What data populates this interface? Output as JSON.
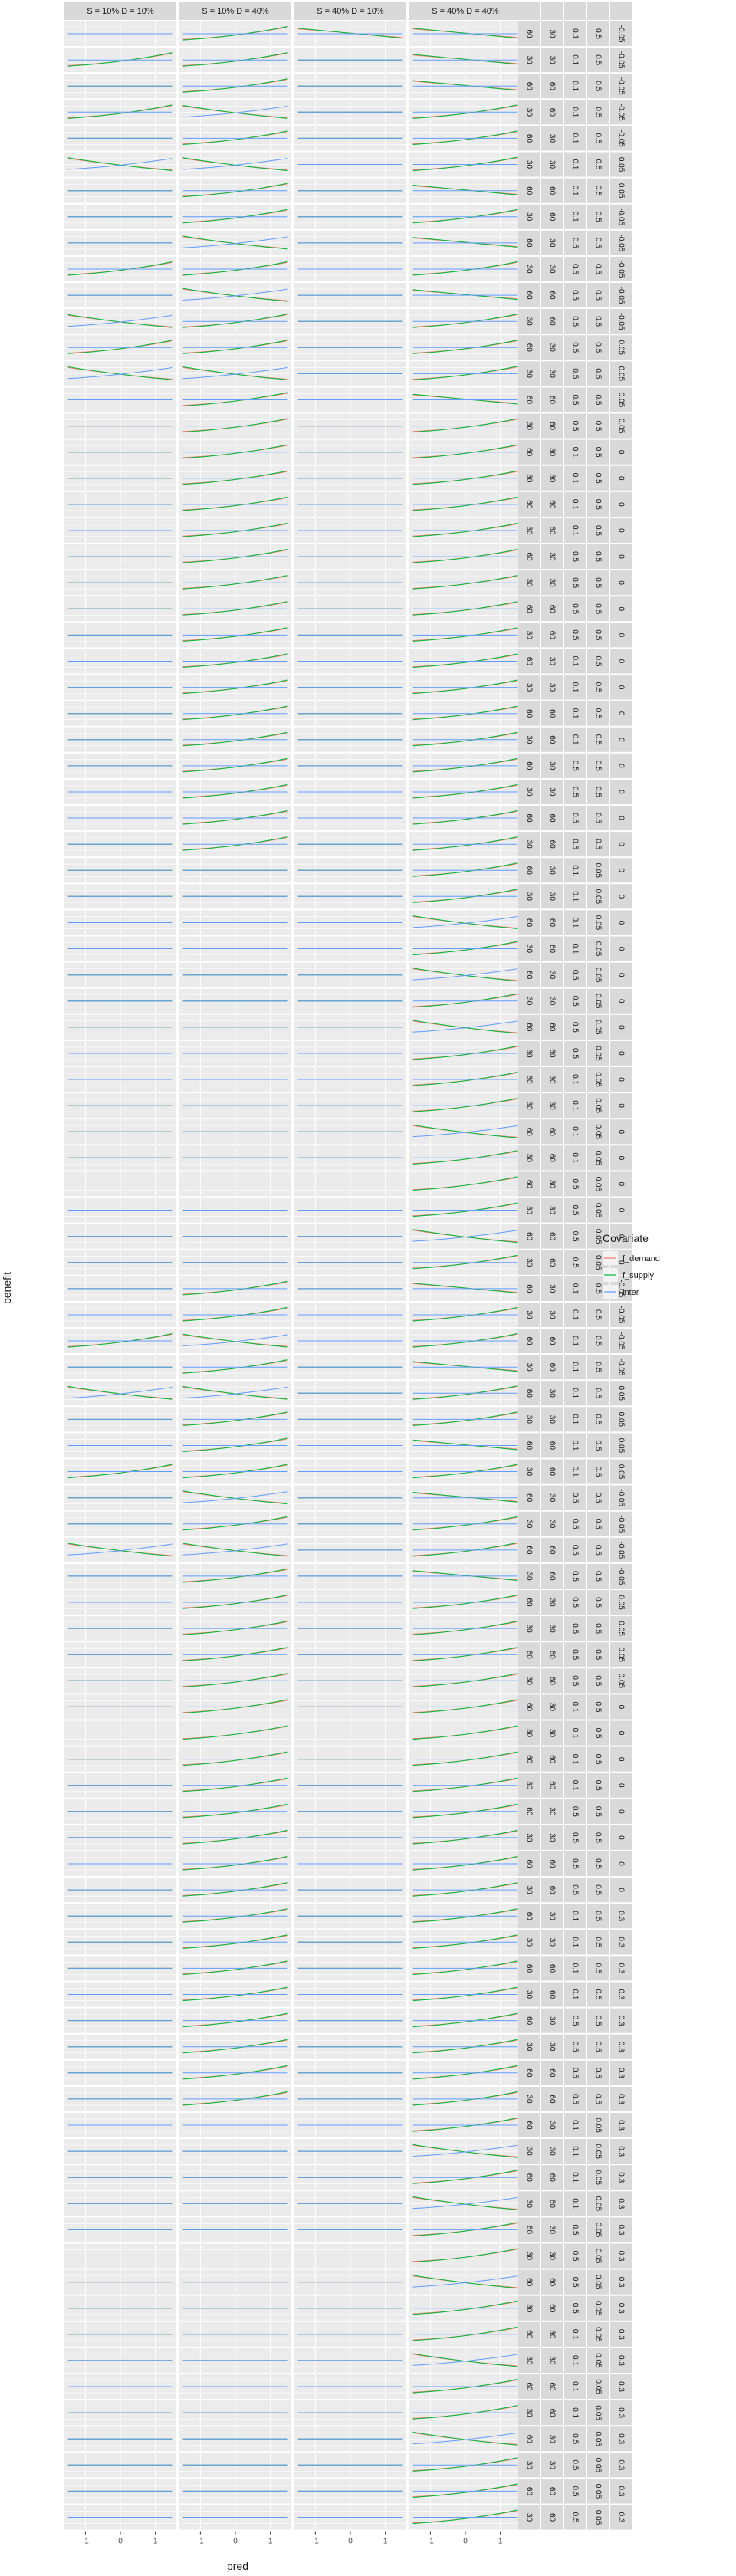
{
  "chart_data": {
    "type": "line",
    "xlabel": "pred",
    "ylabel": "benefit",
    "xlim": [
      -1.6,
      1.6
    ],
    "x_ticks": [
      -1,
      0,
      1
    ],
    "x_tick_labels": [
      "-1",
      "0",
      "1"
    ],
    "grid": true,
    "legend_position": "right",
    "legend": {
      "title": "Covariate",
      "entries": [
        {
          "name": "f_demand",
          "color": "#F8766D"
        },
        {
          "name": "f_supply",
          "color": "#00BA38"
        },
        {
          "name": "inter",
          "color": "#619CFF"
        }
      ]
    },
    "panel_background": "#EBEBEB",
    "strip_background": "#D9D9D9",
    "column_labels": [
      "S = 10% D = 10%",
      "S = 10% D = 40%",
      "S = 40% D = 10%",
      "S = 40% D = 40%"
    ],
    "row_strip_labels": [
      [
        "60",
        "30",
        "0.1",
        "0.5",
        "-0.05"
      ],
      [
        "30",
        "30",
        "0.1",
        "0.5",
        "-0.05"
      ],
      [
        "60",
        "60",
        "0.1",
        "0.5",
        "-0.05"
      ],
      [
        "30",
        "60",
        "0.1",
        "0.5",
        "-0.05"
      ],
      [
        "60",
        "30",
        "0.1",
        "0.5",
        "-0.05"
      ],
      [
        "30",
        "30",
        "0.1",
        "0.5",
        "0.05"
      ],
      [
        "60",
        "60",
        "0.1",
        "0.5",
        "0.05"
      ],
      [
        "30",
        "60",
        "0.1",
        "0.5",
        "-0.05"
      ],
      [
        "60",
        "30",
        "0.5",
        "0.5",
        "-0.05"
      ],
      [
        "30",
        "30",
        "0.5",
        "0.5",
        "-0.05"
      ],
      [
        "60",
        "60",
        "0.5",
        "0.5",
        "-0.05"
      ],
      [
        "30",
        "60",
        "0.5",
        "0.5",
        "-0.05"
      ],
      [
        "60",
        "30",
        "0.5",
        "0.5",
        "0.05"
      ],
      [
        "30",
        "30",
        "0.5",
        "0.5",
        "0.05"
      ],
      [
        "60",
        "60",
        "0.5",
        "0.5",
        "0.05"
      ],
      [
        "30",
        "60",
        "0.5",
        "0.5",
        "0.05"
      ],
      [
        "60",
        "30",
        "0.1",
        "0.5",
        "0"
      ],
      [
        "30",
        "30",
        "0.1",
        "0.5",
        "0"
      ],
      [
        "60",
        "60",
        "0.1",
        "0.5",
        "0"
      ],
      [
        "30",
        "60",
        "0.1",
        "0.5",
        "0"
      ],
      [
        "60",
        "30",
        "0.5",
        "0.5",
        "0"
      ],
      [
        "30",
        "30",
        "0.5",
        "0.5",
        "0"
      ],
      [
        "60",
        "60",
        "0.5",
        "0.5",
        "0"
      ],
      [
        "30",
        "60",
        "0.5",
        "0.5",
        "0"
      ],
      [
        "60",
        "30",
        "0.1",
        "0.5",
        "0"
      ],
      [
        "30",
        "30",
        "0.1",
        "0.5",
        "0"
      ],
      [
        "60",
        "60",
        "0.1",
        "0.5",
        "0"
      ],
      [
        "30",
        "60",
        "0.1",
        "0.5",
        "0"
      ],
      [
        "60",
        "30",
        "0.5",
        "0.5",
        "0"
      ],
      [
        "30",
        "30",
        "0.5",
        "0.5",
        "0"
      ],
      [
        "60",
        "60",
        "0.5",
        "0.5",
        "0"
      ],
      [
        "30",
        "60",
        "0.5",
        "0.5",
        "0"
      ],
      [
        "60",
        "30",
        "0.1",
        "0.05",
        "0"
      ],
      [
        "30",
        "30",
        "0.1",
        "0.05",
        "0"
      ],
      [
        "60",
        "60",
        "0.1",
        "0.05",
        "0"
      ],
      [
        "30",
        "60",
        "0.1",
        "0.05",
        "0"
      ],
      [
        "60",
        "30",
        "0.5",
        "0.05",
        "0"
      ],
      [
        "30",
        "30",
        "0.5",
        "0.05",
        "0"
      ],
      [
        "60",
        "60",
        "0.5",
        "0.05",
        "0"
      ],
      [
        "30",
        "60",
        "0.5",
        "0.05",
        "0"
      ],
      [
        "60",
        "30",
        "0.1",
        "0.05",
        "0"
      ],
      [
        "30",
        "30",
        "0.1",
        "0.05",
        "0"
      ],
      [
        "60",
        "60",
        "0.1",
        "0.05",
        "0"
      ],
      [
        "30",
        "60",
        "0.1",
        "0.05",
        "0"
      ],
      [
        "60",
        "30",
        "0.5",
        "0.05",
        "0"
      ],
      [
        "30",
        "30",
        "0.5",
        "0.05",
        "0"
      ],
      [
        "60",
        "60",
        "0.5",
        "0.05",
        "0"
      ],
      [
        "30",
        "60",
        "0.5",
        "0.05",
        "0"
      ],
      [
        "60",
        "30",
        "0.1",
        "0.5",
        "-0.05"
      ],
      [
        "30",
        "30",
        "0.1",
        "0.5",
        "-0.05"
      ],
      [
        "60",
        "60",
        "0.1",
        "0.5",
        "-0.05"
      ],
      [
        "30",
        "60",
        "0.1",
        "0.5",
        "-0.05"
      ],
      [
        "60",
        "30",
        "0.1",
        "0.5",
        "0.05"
      ],
      [
        "30",
        "30",
        "0.1",
        "0.5",
        "0.05"
      ],
      [
        "60",
        "60",
        "0.1",
        "0.5",
        "0.05"
      ],
      [
        "30",
        "60",
        "0.1",
        "0.5",
        "0.05"
      ],
      [
        "60",
        "30",
        "0.5",
        "0.5",
        "-0.05"
      ],
      [
        "30",
        "30",
        "0.5",
        "0.5",
        "-0.05"
      ],
      [
        "60",
        "60",
        "0.5",
        "0.5",
        "-0.05"
      ],
      [
        "30",
        "60",
        "0.5",
        "0.5",
        "-0.05"
      ],
      [
        "60",
        "30",
        "0.5",
        "0.5",
        "0.05"
      ],
      [
        "30",
        "30",
        "0.5",
        "0.5",
        "0.05"
      ],
      [
        "60",
        "60",
        "0.5",
        "0.5",
        "0.05"
      ],
      [
        "30",
        "60",
        "0.5",
        "0.5",
        "0.05"
      ],
      [
        "60",
        "30",
        "0.1",
        "0.5",
        "0"
      ],
      [
        "30",
        "30",
        "0.1",
        "0.5",
        "0"
      ],
      [
        "60",
        "60",
        "0.1",
        "0.5",
        "0"
      ],
      [
        "30",
        "60",
        "0.1",
        "0.5",
        "0"
      ],
      [
        "60",
        "30",
        "0.5",
        "0.5",
        "0"
      ],
      [
        "30",
        "30",
        "0.5",
        "0.5",
        "0"
      ],
      [
        "60",
        "60",
        "0.5",
        "0.5",
        "0"
      ],
      [
        "30",
        "60",
        "0.5",
        "0.5",
        "0"
      ],
      [
        "60",
        "30",
        "0.1",
        "0.5",
        "0.3"
      ],
      [
        "30",
        "30",
        "0.1",
        "0.5",
        "0.3"
      ],
      [
        "60",
        "60",
        "0.1",
        "0.5",
        "0.3"
      ],
      [
        "30",
        "60",
        "0.1",
        "0.5",
        "0.3"
      ],
      [
        "60",
        "30",
        "0.5",
        "0.5",
        "0.3"
      ],
      [
        "30",
        "30",
        "0.5",
        "0.5",
        "0.3"
      ],
      [
        "60",
        "60",
        "0.5",
        "0.5",
        "0.3"
      ],
      [
        "30",
        "60",
        "0.5",
        "0.5",
        "0.3"
      ],
      [
        "60",
        "30",
        "0.1",
        "0.05",
        "0.3"
      ],
      [
        "30",
        "30",
        "0.1",
        "0.05",
        "0.3"
      ],
      [
        "60",
        "60",
        "0.1",
        "0.05",
        "0.3"
      ],
      [
        "30",
        "60",
        "0.1",
        "0.05",
        "0.3"
      ],
      [
        "60",
        "30",
        "0.5",
        "0.05",
        "0.3"
      ],
      [
        "30",
        "30",
        "0.5",
        "0.05",
        "0.3"
      ],
      [
        "60",
        "60",
        "0.5",
        "0.05",
        "0.3"
      ],
      [
        "30",
        "60",
        "0.5",
        "0.05",
        "0.3"
      ],
      [
        "60",
        "30",
        "0.1",
        "0.05",
        "0.3"
      ],
      [
        "30",
        "30",
        "0.1",
        "0.05",
        "0.3"
      ],
      [
        "60",
        "60",
        "0.1",
        "0.05",
        "0.3"
      ],
      [
        "30",
        "60",
        "0.1",
        "0.05",
        "0.3"
      ],
      [
        "60",
        "30",
        "0.5",
        "0.05",
        "0.3"
      ],
      [
        "30",
        "30",
        "0.5",
        "0.05",
        "0.3"
      ],
      [
        "60",
        "60",
        "0.5",
        "0.05",
        "0.3"
      ],
      [
        "30",
        "60",
        "0.5",
        "0.05",
        "0.3"
      ]
    ],
    "panel_ylim": [
      -1,
      1
    ],
    "series_curve_library": {
      "flat": {
        "x": [
          -1.5,
          0,
          1.5
        ],
        "f_demand": [
          0,
          0,
          0
        ],
        "f_supply": [
          0,
          0,
          0
        ],
        "inter": [
          0,
          0,
          0
        ]
      },
      "rising": {
        "x": [
          -1.5,
          0,
          1.5
        ],
        "f_demand": [
          -0.45,
          -0.1,
          0.55
        ],
        "f_supply": [
          -0.5,
          -0.1,
          0.6
        ],
        "inter": [
          0,
          0,
          0
        ]
      },
      "cross": {
        "x": [
          -1.5,
          0,
          1.5
        ],
        "f_demand": [
          0.5,
          -0.05,
          -0.45
        ],
        "f_supply": [
          0.55,
          -0.05,
          -0.5
        ],
        "inter": [
          -0.4,
          -0.05,
          0.5
        ]
      },
      "falling": {
        "x": [
          -1.5,
          0,
          1.5
        ],
        "f_demand": [
          0.4,
          0.05,
          -0.3
        ],
        "f_supply": [
          0.45,
          0.05,
          -0.35
        ],
        "inter": [
          0,
          0,
          0
        ]
      }
    },
    "panel_curves": [
      [
        "flat",
        "rising",
        "falling",
        "falling"
      ],
      [
        "rising",
        "rising",
        "flat",
        "falling"
      ],
      [
        "flat",
        "rising",
        "flat",
        "falling"
      ],
      [
        "rising",
        "cross",
        "flat",
        "rising"
      ],
      [
        "flat",
        "rising",
        "flat",
        "rising"
      ],
      [
        "cross",
        "cross",
        "flat",
        "rising"
      ],
      [
        "flat",
        "rising",
        "flat",
        "falling"
      ],
      [
        "flat",
        "rising",
        "flat",
        "rising"
      ],
      [
        "flat",
        "cross",
        "flat",
        "falling"
      ],
      [
        "rising",
        "rising",
        "flat",
        "rising"
      ],
      [
        "flat",
        "cross",
        "flat",
        "falling"
      ],
      [
        "cross",
        "rising",
        "flat",
        "rising"
      ],
      [
        "rising",
        "rising",
        "flat",
        "rising"
      ],
      [
        "cross",
        "cross",
        "flat",
        "rising"
      ],
      [
        "flat",
        "rising",
        "flat",
        "falling"
      ],
      [
        "flat",
        "rising",
        "flat",
        "rising"
      ],
      [
        "flat",
        "rising",
        "flat",
        "rising"
      ],
      [
        "flat",
        "rising",
        "flat",
        "rising"
      ],
      [
        "flat",
        "rising",
        "flat",
        "rising"
      ],
      [
        "flat",
        "rising",
        "flat",
        "rising"
      ],
      [
        "flat",
        "rising",
        "flat",
        "rising"
      ],
      [
        "flat",
        "rising",
        "flat",
        "rising"
      ],
      [
        "flat",
        "rising",
        "flat",
        "rising"
      ],
      [
        "flat",
        "rising",
        "flat",
        "rising"
      ],
      [
        "flat",
        "rising",
        "flat",
        "rising"
      ],
      [
        "flat",
        "rising",
        "flat",
        "rising"
      ],
      [
        "flat",
        "rising",
        "flat",
        "rising"
      ],
      [
        "flat",
        "rising",
        "flat",
        "rising"
      ],
      [
        "flat",
        "rising",
        "flat",
        "rising"
      ],
      [
        "flat",
        "rising",
        "flat",
        "rising"
      ],
      [
        "flat",
        "rising",
        "flat",
        "rising"
      ],
      [
        "flat",
        "rising",
        "flat",
        "rising"
      ],
      [
        "flat",
        "flat",
        "flat",
        "rising"
      ],
      [
        "flat",
        "flat",
        "flat",
        "rising"
      ],
      [
        "flat",
        "flat",
        "flat",
        "cross"
      ],
      [
        "flat",
        "flat",
        "flat",
        "rising"
      ],
      [
        "flat",
        "flat",
        "flat",
        "cross"
      ],
      [
        "flat",
        "flat",
        "flat",
        "rising"
      ],
      [
        "flat",
        "flat",
        "flat",
        "cross"
      ],
      [
        "flat",
        "flat",
        "flat",
        "rising"
      ],
      [
        "flat",
        "flat",
        "flat",
        "rising"
      ],
      [
        "flat",
        "flat",
        "flat",
        "rising"
      ],
      [
        "flat",
        "flat",
        "flat",
        "cross"
      ],
      [
        "flat",
        "flat",
        "flat",
        "rising"
      ],
      [
        "flat",
        "flat",
        "flat",
        "rising"
      ],
      [
        "flat",
        "flat",
        "flat",
        "rising"
      ],
      [
        "flat",
        "flat",
        "flat",
        "cross"
      ],
      [
        "flat",
        "flat",
        "flat",
        "rising"
      ],
      [
        "flat",
        "rising",
        "flat",
        "falling"
      ],
      [
        "flat",
        "rising",
        "flat",
        "rising"
      ],
      [
        "rising",
        "cross",
        "flat",
        "rising"
      ],
      [
        "flat",
        "rising",
        "flat",
        "falling"
      ],
      [
        "cross",
        "cross",
        "flat",
        "rising"
      ],
      [
        "flat",
        "rising",
        "flat",
        "rising"
      ],
      [
        "flat",
        "rising",
        "flat",
        "falling"
      ],
      [
        "rising",
        "rising",
        "flat",
        "rising"
      ],
      [
        "flat",
        "cross",
        "flat",
        "falling"
      ],
      [
        "flat",
        "rising",
        "flat",
        "rising"
      ],
      [
        "cross",
        "cross",
        "flat",
        "rising"
      ],
      [
        "flat",
        "rising",
        "flat",
        "falling"
      ],
      [
        "flat",
        "rising",
        "flat",
        "rising"
      ],
      [
        "flat",
        "rising",
        "flat",
        "rising"
      ],
      [
        "flat",
        "rising",
        "flat",
        "rising"
      ],
      [
        "flat",
        "rising",
        "flat",
        "rising"
      ],
      [
        "flat",
        "rising",
        "flat",
        "rising"
      ],
      [
        "flat",
        "rising",
        "flat",
        "rising"
      ],
      [
        "flat",
        "rising",
        "flat",
        "rising"
      ],
      [
        "flat",
        "rising",
        "flat",
        "rising"
      ],
      [
        "flat",
        "rising",
        "flat",
        "rising"
      ],
      [
        "flat",
        "rising",
        "flat",
        "rising"
      ],
      [
        "flat",
        "rising",
        "flat",
        "rising"
      ],
      [
        "flat",
        "rising",
        "flat",
        "rising"
      ],
      [
        "flat",
        "rising",
        "flat",
        "rising"
      ],
      [
        "flat",
        "rising",
        "flat",
        "rising"
      ],
      [
        "flat",
        "rising",
        "flat",
        "rising"
      ],
      [
        "flat",
        "rising",
        "flat",
        "rising"
      ],
      [
        "flat",
        "rising",
        "flat",
        "rising"
      ],
      [
        "flat",
        "rising",
        "flat",
        "rising"
      ],
      [
        "flat",
        "rising",
        "flat",
        "rising"
      ],
      [
        "flat",
        "rising",
        "flat",
        "rising"
      ],
      [
        "flat",
        "flat",
        "flat",
        "rising"
      ],
      [
        "flat",
        "flat",
        "flat",
        "cross"
      ],
      [
        "flat",
        "flat",
        "flat",
        "rising"
      ],
      [
        "flat",
        "flat",
        "flat",
        "cross"
      ],
      [
        "flat",
        "flat",
        "flat",
        "rising"
      ],
      [
        "flat",
        "flat",
        "flat",
        "rising"
      ],
      [
        "flat",
        "flat",
        "flat",
        "cross"
      ],
      [
        "flat",
        "flat",
        "flat",
        "rising"
      ],
      [
        "flat",
        "flat",
        "flat",
        "rising"
      ],
      [
        "flat",
        "flat",
        "flat",
        "cross"
      ],
      [
        "flat",
        "flat",
        "flat",
        "rising"
      ],
      [
        "flat",
        "flat",
        "flat",
        "rising"
      ],
      [
        "flat",
        "flat",
        "flat",
        "cross"
      ],
      [
        "flat",
        "flat",
        "flat",
        "rising"
      ],
      [
        "flat",
        "flat",
        "flat",
        "rising"
      ],
      [
        "flat",
        "flat",
        "flat",
        "rising"
      ]
    ]
  }
}
